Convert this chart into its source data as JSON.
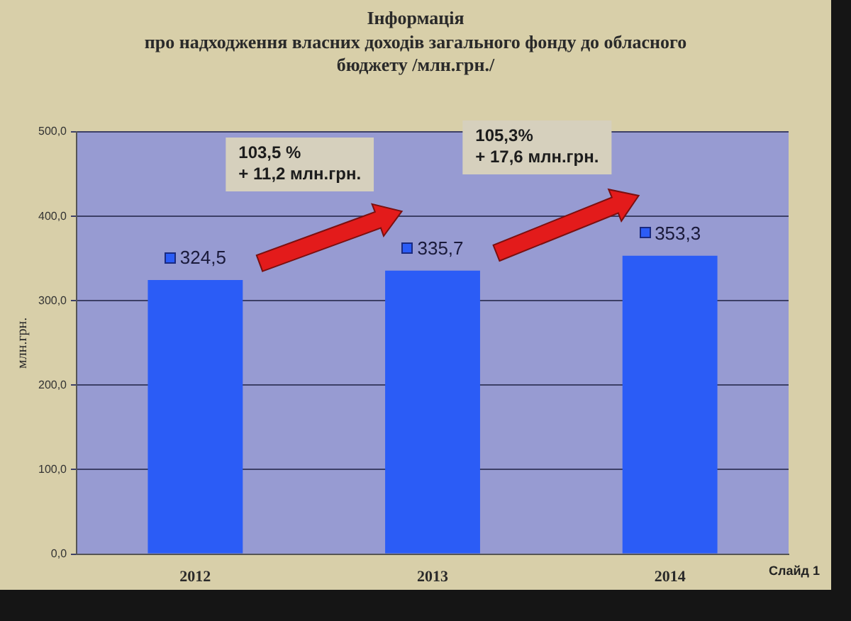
{
  "chart_data": {
    "type": "bar",
    "title": "Інформація",
    "subtitle": "про надходження власних доходів загального фонду до обласного бюджету /млн.грн./",
    "ylabel": "млн.грн.",
    "categories": [
      "2012",
      "2013",
      "2014"
    ],
    "values": [
      324.5,
      335.7,
      353.3
    ],
    "color": "#2b5cf6",
    "value_labels": [
      "324,5",
      "335,7",
      "353,3"
    ],
    "ylim": [
      0,
      500
    ],
    "yticks": [
      {
        "value": 0,
        "label": "0,0"
      },
      {
        "value": 100,
        "label": "100,0"
      },
      {
        "value": 200,
        "label": "200,0"
      },
      {
        "value": 300,
        "label": "300,0"
      },
      {
        "value": 400,
        "label": "400,0"
      },
      {
        "value": 500,
        "label": "500,0"
      }
    ],
    "grid": "y",
    "annotations": [
      "103,5 %\n+ 11,2 млн.грн.",
      "105,3%\n+ 17,6 млн.грн.",
      "Слайд 1"
    ]
  }
}
